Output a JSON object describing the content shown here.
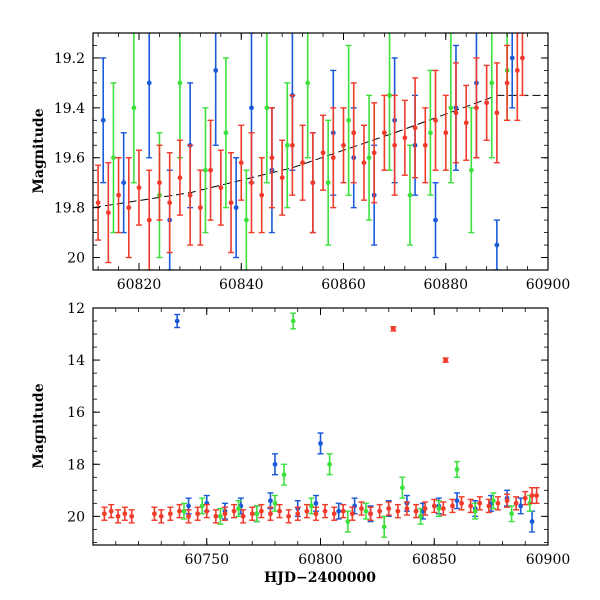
{
  "colors": {
    "blue": "#1a5ad8",
    "green": "#3ee03e",
    "red": "#f03a2a",
    "model": "#000000",
    "axes": "#000000",
    "background": "#ffffff"
  },
  "chart_data": [
    {
      "id": "top",
      "type": "scatter",
      "title": "",
      "xlabel": "",
      "ylabel": "Magnitude",
      "xlim": [
        60811,
        60900
      ],
      "ylim": [
        20.05,
        19.1
      ],
      "y_inverted": true,
      "grid": false,
      "legend": "none",
      "xticks": [
        60820,
        60840,
        60860,
        60880,
        60900
      ],
      "xtick_labels": [
        "60820",
        "60840",
        "60860",
        "60880",
        "60900"
      ],
      "yticks": [
        19.2,
        19.4,
        19.6,
        19.8,
        20.0
      ],
      "ytick_labels": [
        "19.2",
        "19.4",
        "19.6",
        "19.8",
        "20"
      ],
      "model_curve": {
        "style": "long-dash",
        "x": [
          60811,
          60830,
          60850,
          60870,
          60890,
          60900
        ],
        "y": [
          19.8,
          19.74,
          19.64,
          19.5,
          19.35,
          19.35
        ]
      },
      "series": [
        {
          "color_key": "blue",
          "x": [
            60813,
            60817,
            60822,
            60826,
            60830,
            60835,
            60839,
            60842,
            60846,
            60850,
            60854,
            60858,
            60862,
            60866,
            60870,
            60874,
            60878,
            60882,
            60886,
            60890,
            60893
          ],
          "y": [
            19.45,
            19.7,
            19.3,
            19.85,
            19.55,
            19.25,
            19.8,
            19.4,
            19.65,
            19.35,
            19.7,
            19.5,
            19.6,
            19.75,
            19.45,
            19.55,
            19.85,
            19.4,
            19.3,
            19.95,
            19.2
          ],
          "err": [
            0.25,
            0.2,
            0.3,
            0.2,
            0.25,
            0.3,
            0.2,
            0.3,
            0.25,
            0.3,
            0.2,
            0.25,
            0.2,
            0.2,
            0.25,
            0.2,
            0.15,
            0.25,
            0.3,
            0.1,
            0.2
          ]
        },
        {
          "color_key": "green",
          "x": [
            60815,
            60819,
            60824,
            60828,
            60833,
            60837,
            60841,
            60845,
            60849,
            60853,
            60857,
            60861,
            60865,
            60869,
            60873,
            60877,
            60881,
            60885,
            60889,
            60892
          ],
          "y": [
            19.6,
            19.4,
            19.75,
            19.3,
            19.65,
            19.5,
            19.85,
            19.4,
            19.55,
            19.3,
            19.7,
            19.45,
            19.6,
            19.35,
            19.75,
            19.5,
            19.4,
            19.65,
            19.3,
            19.25
          ],
          "err": [
            0.3,
            0.3,
            0.25,
            0.3,
            0.25,
            0.3,
            0.2,
            0.3,
            0.25,
            0.3,
            0.25,
            0.3,
            0.25,
            0.3,
            0.2,
            0.25,
            0.3,
            0.25,
            0.3,
            0.2
          ]
        },
        {
          "color_key": "red",
          "x": [
            60812,
            60814,
            60816,
            60818,
            60820,
            60822,
            60824,
            60826,
            60828,
            60830,
            60832,
            60834,
            60836,
            60838,
            60840,
            60842,
            60844,
            60846,
            60848,
            60850,
            60852,
            60854,
            60856,
            60858,
            60860,
            60862,
            60864,
            60866,
            60868,
            60870,
            60872,
            60874,
            60876,
            60878,
            60880,
            60882,
            60884,
            60886,
            60888,
            60890,
            60892,
            60894,
            60895
          ],
          "y": [
            19.78,
            19.82,
            19.75,
            19.8,
            19.72,
            19.85,
            19.7,
            19.78,
            19.68,
            19.75,
            19.8,
            19.65,
            19.72,
            19.78,
            19.62,
            19.7,
            19.75,
            19.6,
            19.68,
            19.55,
            19.62,
            19.7,
            19.58,
            19.6,
            19.55,
            19.5,
            19.62,
            19.58,
            19.5,
            19.55,
            19.52,
            19.48,
            19.55,
            19.45,
            19.5,
            19.42,
            19.46,
            19.4,
            19.38,
            19.42,
            19.3,
            19.25,
            19.2
          ],
          "err": [
            0.15,
            0.2,
            0.15,
            0.2,
            0.15,
            0.2,
            0.15,
            0.2,
            0.15,
            0.2,
            0.15,
            0.2,
            0.15,
            0.2,
            0.15,
            0.2,
            0.15,
            0.2,
            0.15,
            0.2,
            0.15,
            0.2,
            0.15,
            0.2,
            0.15,
            0.2,
            0.15,
            0.2,
            0.15,
            0.2,
            0.15,
            0.2,
            0.15,
            0.2,
            0.15,
            0.2,
            0.15,
            0.2,
            0.15,
            0.2,
            0.15,
            0.2,
            0.15
          ]
        }
      ]
    },
    {
      "id": "bottom",
      "type": "scatter",
      "title": "",
      "xlabel": "HJD−2400000",
      "ylabel": "Magnitude",
      "xlim": [
        60700,
        60900
      ],
      "ylim": [
        21.1,
        12
      ],
      "y_inverted": true,
      "grid": false,
      "legend": "none",
      "xticks": [
        60750,
        60800,
        60850,
        60900
      ],
      "xtick_labels": [
        "60750",
        "60800",
        "60850",
        "60900"
      ],
      "yticks": [
        12,
        14,
        16,
        18,
        20
      ],
      "ytick_labels": [
        "12",
        "14",
        "16",
        "18",
        "20"
      ],
      "series": [
        {
          "color_key": "blue",
          "x": [
            60737,
            60742,
            60750,
            60758,
            60765,
            60772,
            60778,
            60780,
            60790,
            60798,
            60800,
            60808,
            60815,
            60822,
            60830,
            60838,
            60845,
            60852,
            60860,
            60868,
            60875,
            60882,
            60888,
            60893
          ],
          "y": [
            12.5,
            19.6,
            19.5,
            19.8,
            19.6,
            19.9,
            19.4,
            18.0,
            19.7,
            19.5,
            17.2,
            19.8,
            19.6,
            19.9,
            19.7,
            19.5,
            19.8,
            19.6,
            19.4,
            19.7,
            19.5,
            19.3,
            19.6,
            20.2
          ],
          "err": [
            0.25,
            0.3,
            0.3,
            0.3,
            0.3,
            0.3,
            0.3,
            0.4,
            0.3,
            0.3,
            0.4,
            0.3,
            0.3,
            0.3,
            0.3,
            0.3,
            0.3,
            0.3,
            0.3,
            0.3,
            0.3,
            0.3,
            0.3,
            0.4
          ]
        },
        {
          "color_key": "green",
          "x": [
            60740,
            60748,
            60756,
            60764,
            60772,
            60780,
            60784,
            60788,
            60796,
            60804,
            60812,
            60820,
            60828,
            60836,
            60844,
            60852,
            60860,
            60868,
            60876,
            60884,
            60892
          ],
          "y": [
            19.8,
            19.6,
            20.0,
            19.7,
            19.9,
            19.5,
            18.4,
            12.5,
            19.6,
            18.0,
            20.2,
            19.8,
            20.4,
            18.9,
            20.0,
            19.7,
            18.2,
            19.8,
            19.4,
            19.9,
            19.5
          ],
          "err": [
            0.3,
            0.3,
            0.3,
            0.3,
            0.3,
            0.3,
            0.4,
            0.3,
            0.3,
            0.4,
            0.4,
            0.3,
            0.4,
            0.4,
            0.3,
            0.3,
            0.3,
            0.3,
            0.3,
            0.3,
            0.3
          ]
        },
        {
          "color_key": "red",
          "x": [
            60705,
            60708,
            60711,
            60714,
            60717,
            60727,
            60730,
            60734,
            60738,
            60742,
            60746,
            60750,
            60754,
            60758,
            60762,
            60766,
            60770,
            60774,
            60778,
            60782,
            60786,
            60790,
            60794,
            60798,
            60802,
            60806,
            60810,
            60814,
            60818,
            60822,
            60826,
            60830,
            60832,
            60834,
            60838,
            60842,
            60846,
            60850,
            60854,
            60855,
            60858,
            60862,
            60866,
            60870,
            60874,
            60878,
            60882,
            60886,
            60890,
            60893,
            60895
          ],
          "y": [
            19.9,
            19.8,
            20.0,
            19.9,
            20.0,
            19.9,
            20.0,
            19.9,
            19.8,
            20.0,
            19.9,
            19.8,
            20.0,
            19.9,
            19.8,
            20.0,
            19.9,
            19.8,
            19.9,
            19.8,
            20.0,
            19.9,
            19.8,
            19.9,
            19.8,
            19.9,
            19.8,
            19.9,
            19.7,
            19.9,
            19.8,
            19.7,
            12.8,
            19.8,
            19.7,
            19.8,
            19.7,
            19.6,
            19.7,
            14.0,
            19.6,
            19.5,
            19.6,
            19.5,
            19.6,
            19.5,
            19.4,
            19.5,
            19.3,
            19.2,
            19.2
          ],
          "err": [
            0.25,
            0.25,
            0.25,
            0.25,
            0.25,
            0.25,
            0.25,
            0.25,
            0.25,
            0.25,
            0.25,
            0.25,
            0.25,
            0.25,
            0.25,
            0.25,
            0.25,
            0.25,
            0.25,
            0.25,
            0.25,
            0.25,
            0.25,
            0.25,
            0.25,
            0.25,
            0.25,
            0.25,
            0.25,
            0.25,
            0.25,
            0.25,
            0.08,
            0.25,
            0.25,
            0.25,
            0.25,
            0.25,
            0.25,
            0.08,
            0.25,
            0.25,
            0.25,
            0.25,
            0.25,
            0.25,
            0.25,
            0.25,
            0.25,
            0.3,
            0.3
          ]
        }
      ]
    }
  ]
}
